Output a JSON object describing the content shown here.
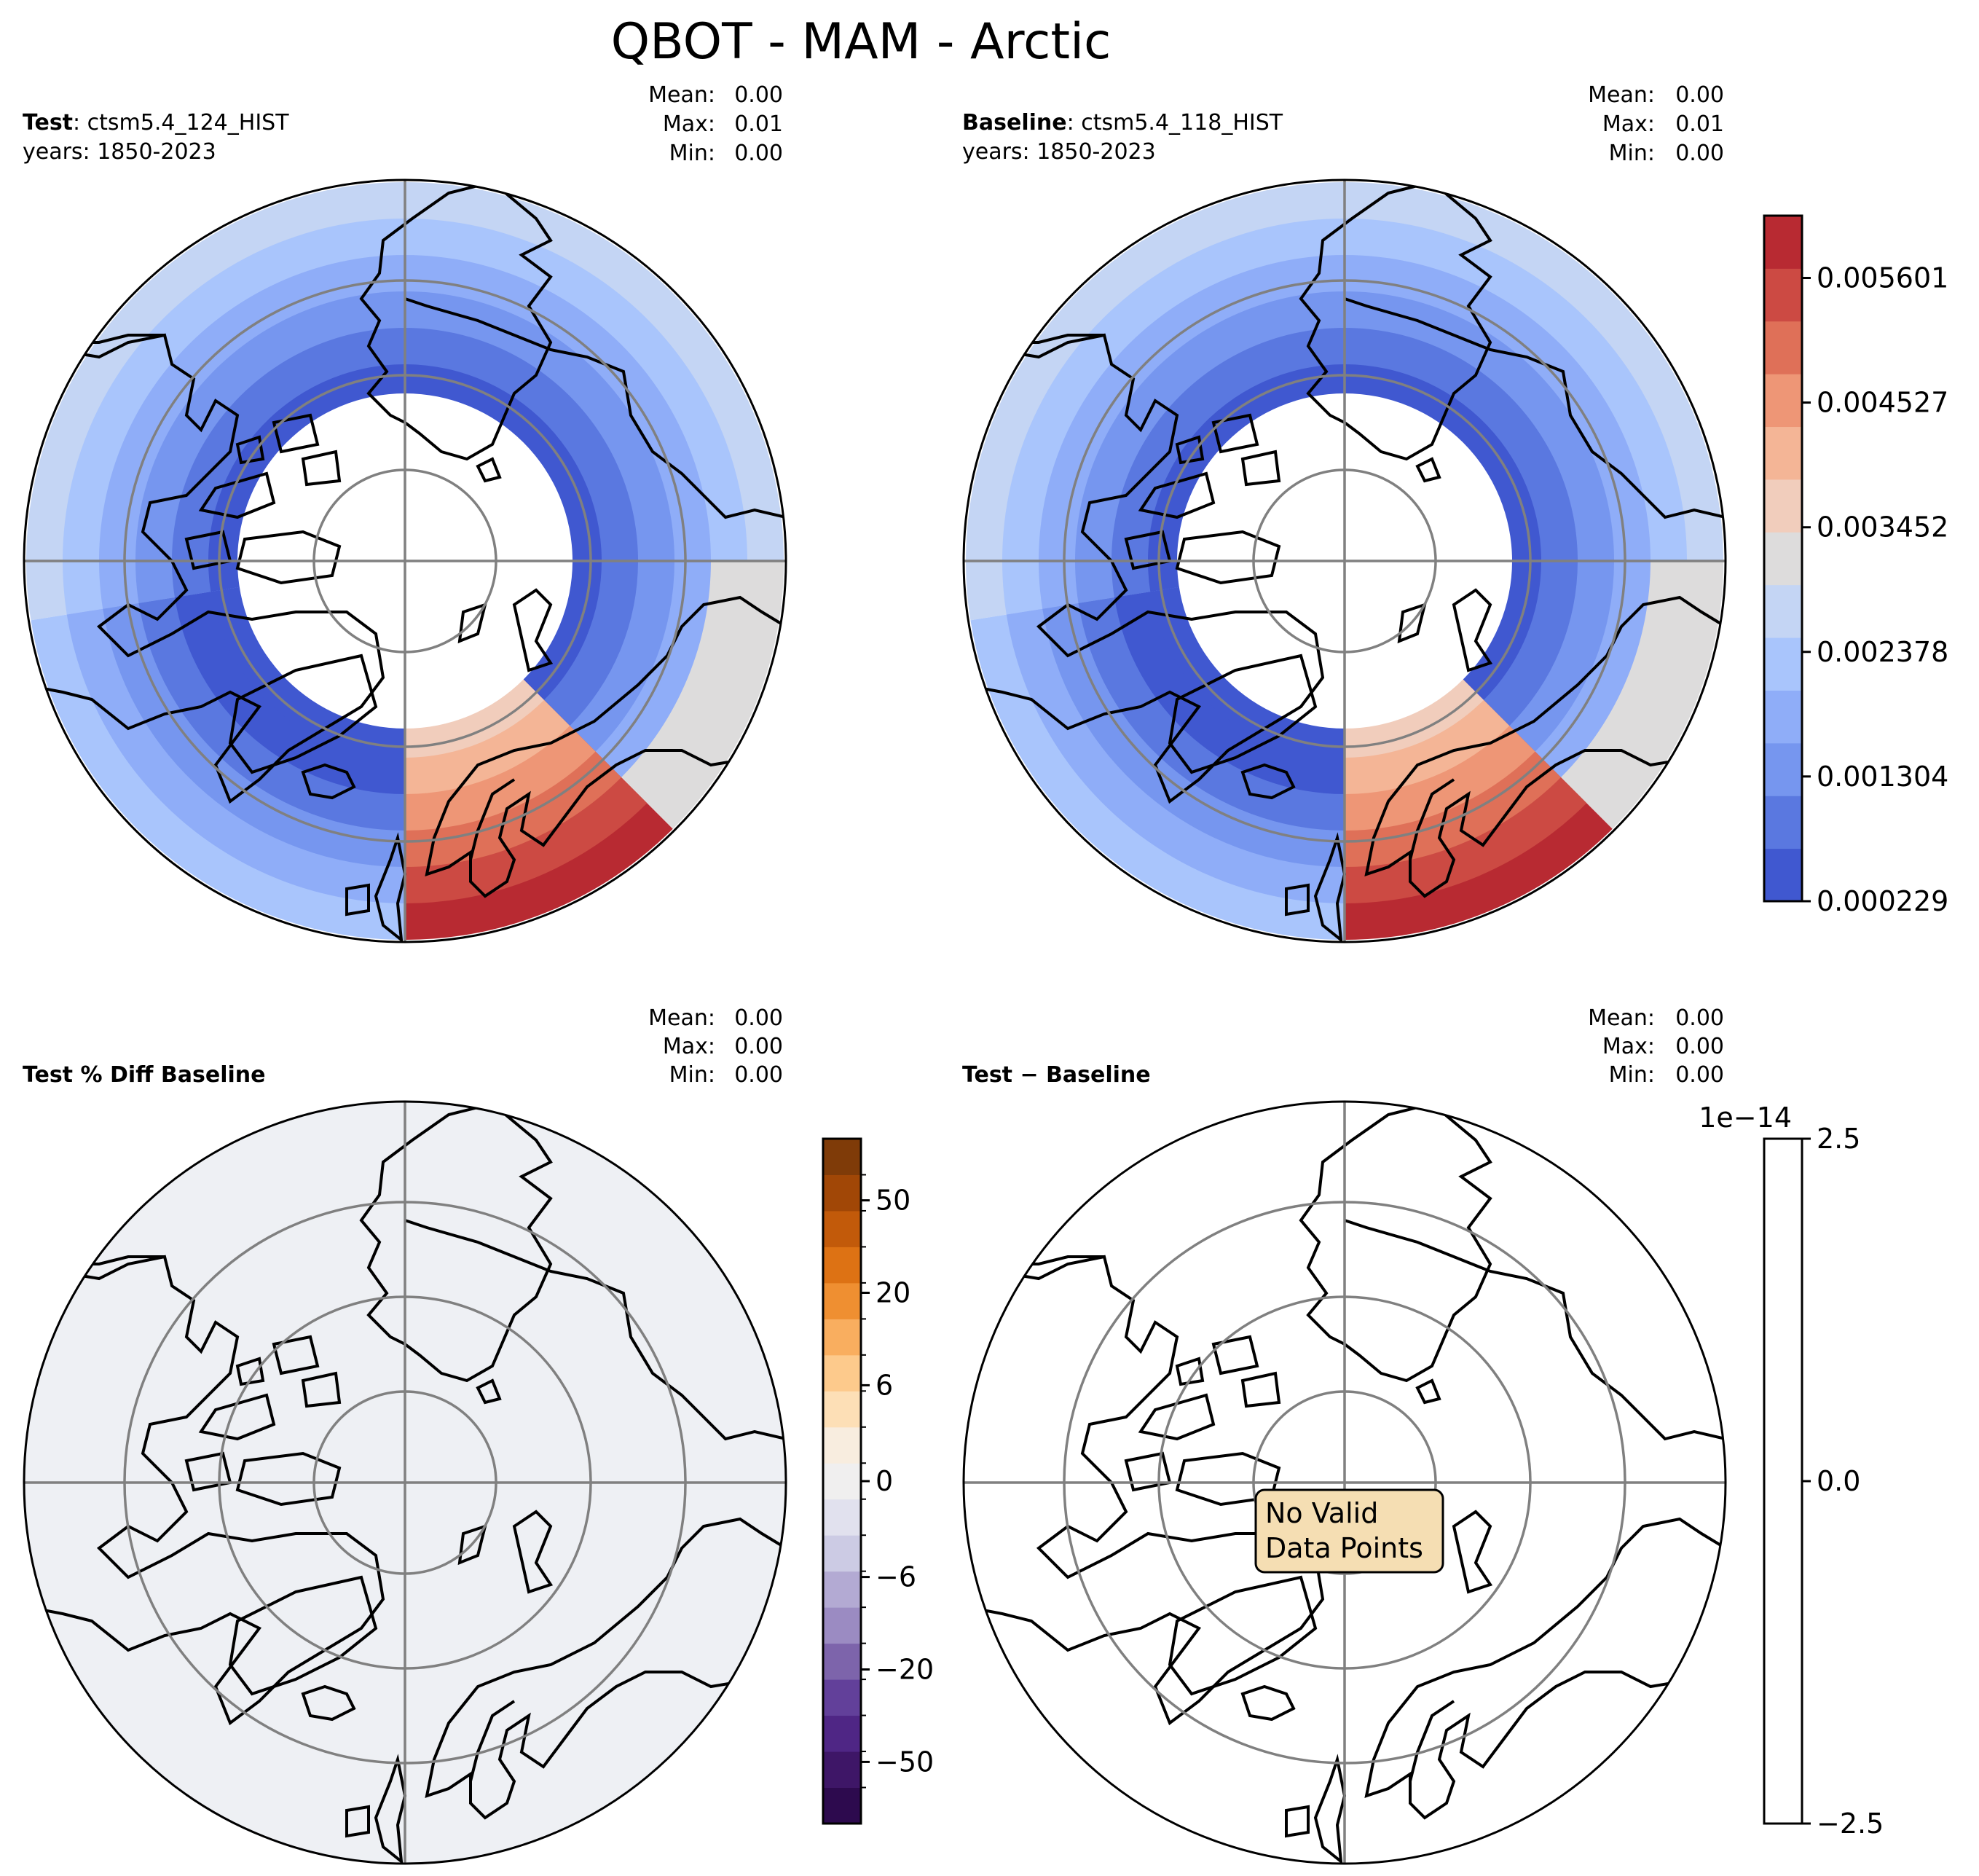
{
  "title": "QBOT - MAM - Arctic",
  "chart_data": [
    {
      "type": "heatmap",
      "projection": "north-polar-stereographic",
      "panel": "top-left",
      "label_bold": "Test",
      "label_rest": ": ctsm5.4_124_HIST",
      "years": "years: 1850-2023",
      "stats": {
        "mean": "0.00",
        "max": "0.01",
        "min": "0.00"
      },
      "field": "QBOT",
      "season": "MAM",
      "region": "Arctic"
    },
    {
      "type": "heatmap",
      "projection": "north-polar-stereographic",
      "panel": "top-right",
      "label_bold": "Baseline",
      "label_rest": ": ctsm5.4_118_HIST",
      "years": "years: 1850-2023",
      "stats": {
        "mean": "0.00",
        "max": "0.01",
        "min": "0.00"
      }
    },
    {
      "type": "heatmap",
      "projection": "north-polar-stereographic",
      "panel": "bottom-left",
      "label_bold": "Test % Diff Baseline",
      "stats": {
        "mean": "0.00",
        "max": "0.00",
        "min": "0.00"
      }
    },
    {
      "type": "heatmap",
      "projection": "north-polar-stereographic",
      "panel": "bottom-right",
      "label_bold": "Test − Baseline",
      "stats": {
        "mean": "0.00",
        "max": "0.00",
        "min": "0.00"
      },
      "annotation": [
        "No Valid",
        "Data Points"
      ]
    }
  ],
  "stat_labels": {
    "mean": "Mean:",
    "max": "Max:",
    "min": "Min:"
  },
  "colorbars": {
    "top": {
      "ticks": [
        "0.005601",
        "0.004527",
        "0.003452",
        "0.002378",
        "0.001304",
        "0.000229"
      ],
      "tick_values": [
        0.005601,
        0.004527,
        0.003452,
        0.002378,
        0.001304,
        0.000229
      ],
      "range": [
        0.000229,
        0.006138
      ],
      "colors": [
        "#4058d0",
        "#5a78e0",
        "#7696ef",
        "#8fadf8",
        "#a9c5fc",
        "#c4d5f4",
        "#dddcdc",
        "#f1cdbc",
        "#f4b596",
        "#ee9676",
        "#df7058",
        "#cc4a43",
        "#b82a32"
      ]
    },
    "pctdiff": {
      "ticks": [
        "50",
        "20",
        "6",
        "0",
        "−6",
        "−20",
        "−50"
      ],
      "colors": [
        "#2d0a4e",
        "#3e1667",
        "#4f2685",
        "#62409a",
        "#7d64ab",
        "#9b8bc2",
        "#b3aad3",
        "#cccbe4",
        "#e1e1ee",
        "#f0efef",
        "#f8eddf",
        "#fddfb6",
        "#fdca8c",
        "#f9ae5f",
        "#ef8f31",
        "#dd7214",
        "#c25a0a",
        "#a14706",
        "#7f3b08"
      ]
    },
    "diff": {
      "ticks": [
        "2.5",
        "0.0",
        "−2.5"
      ],
      "exponent": "1e−14"
    }
  },
  "palette": {
    "land_fill": "#ffffff",
    "ocean_diff": "#eef0f4",
    "grid": "#808080",
    "coast": "#000000",
    "annotation_bg": "#f5deb3"
  }
}
